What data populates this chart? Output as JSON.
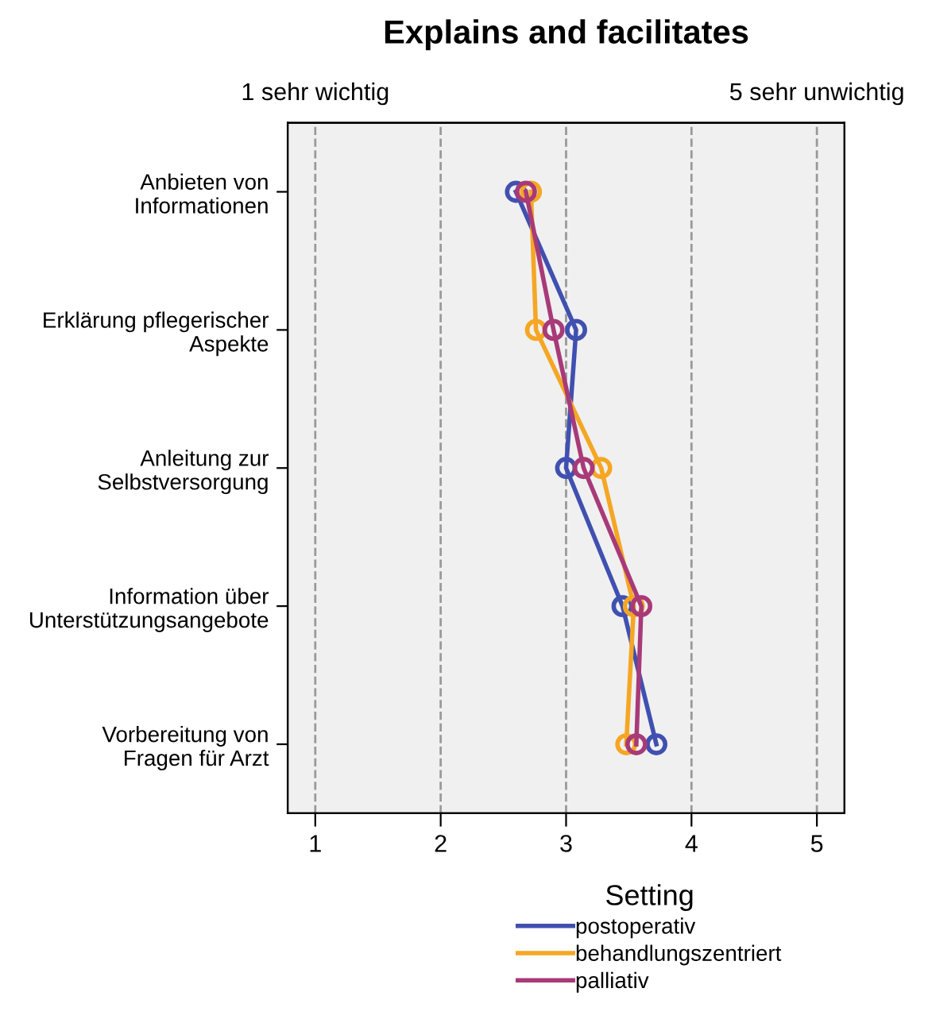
{
  "chart_data": {
    "type": "line",
    "orientation": "horizontal",
    "title": "Explains and facilitates",
    "categories": [
      "Anbieten von\nInformationen",
      "Erklärung pflegerischer\nAspekte",
      "Anleitung zur\nSelbstversorgung",
      "Information über\nUnterstützungsangebote",
      "Vorbereitung von\nFragen für Arzt"
    ],
    "series": [
      {
        "name": "postoperativ",
        "color": "#4050b0",
        "values": [
          2.6,
          3.08,
          3.0,
          3.45,
          3.72
        ]
      },
      {
        "name": "behandlungszentriert",
        "color": "#f5a623",
        "values": [
          2.72,
          2.76,
          3.28,
          3.54,
          3.48
        ]
      },
      {
        "name": "palliativ",
        "color": "#a83a78",
        "values": [
          2.68,
          2.9,
          3.14,
          3.6,
          3.56
        ]
      }
    ],
    "xlim": [
      0.78,
      5.22
    ],
    "xticks": [
      1,
      2,
      3,
      4,
      5
    ],
    "x2lim": [
      0.78,
      5.22
    ],
    "x2ticks": [
      {
        "value": 1,
        "label": "1 sehr wichtig"
      },
      {
        "value": 5,
        "label": "5 sehr unwichtig"
      }
    ],
    "legend_title": "Setting",
    "legend": "bottom",
    "grid": "x",
    "marker": "circle",
    "line_style": "solid"
  }
}
